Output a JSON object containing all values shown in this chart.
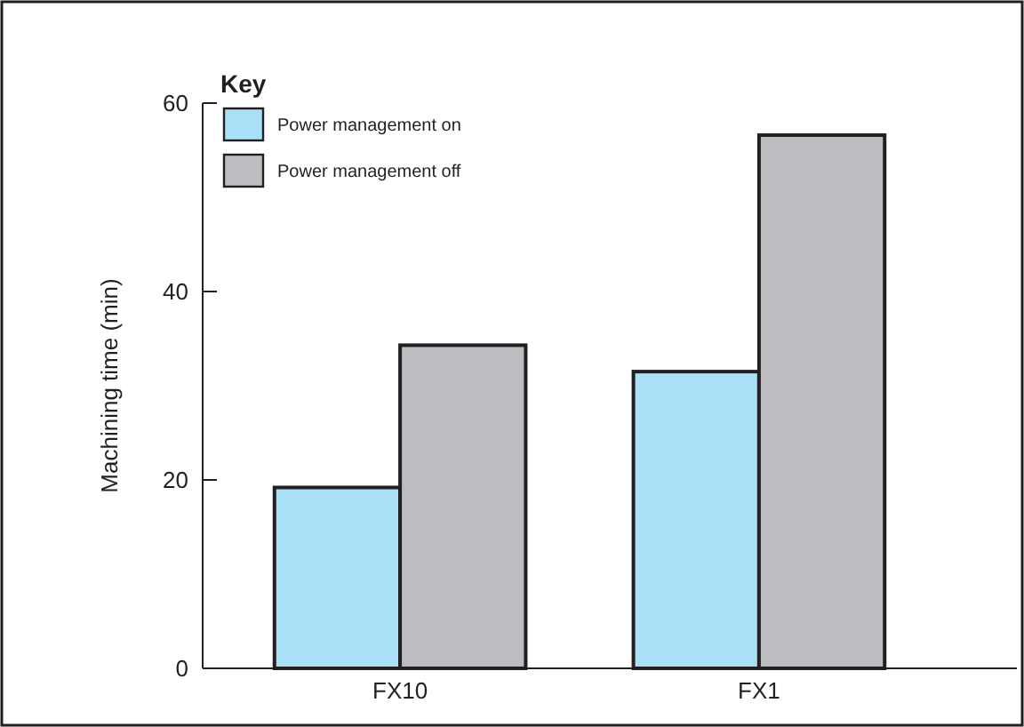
{
  "chart_data": {
    "type": "bar",
    "ylabel": "Machining time (min)",
    "legend_title": "Key",
    "categories": [
      "FX10",
      "FX1"
    ],
    "series": [
      {
        "name": "Power management on",
        "color": "#aadff8",
        "values": [
          19.2,
          31.5
        ]
      },
      {
        "name": "Power management off",
        "color": "#bcbdc1",
        "values": [
          34.3,
          56.6
        ]
      }
    ],
    "ylim": [
      0,
      60
    ],
    "yticks": [
      0,
      20,
      40,
      60
    ],
    "grid": false,
    "legend": "top left"
  }
}
